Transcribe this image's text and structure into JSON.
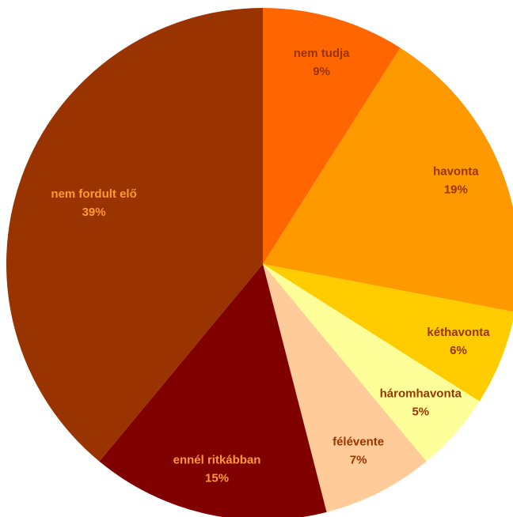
{
  "chart_data": {
    "type": "pie",
    "categories": [
      "nem tudja",
      "havonta",
      "kéthavonta",
      "háromhavonta",
      "félévente",
      "ennél ritkábban",
      "nem fordult elő"
    ],
    "values": [
      9,
      19,
      6,
      5,
      7,
      15,
      39
    ],
    "value_labels": [
      "9%",
      "19%",
      "6%",
      "5%",
      "7%",
      "15%",
      "39%"
    ],
    "colors": [
      "#FF6600",
      "#FF9900",
      "#FFCC00",
      "#FFFF99",
      "#FFCC99",
      "#800000",
      "#993300"
    ]
  }
}
